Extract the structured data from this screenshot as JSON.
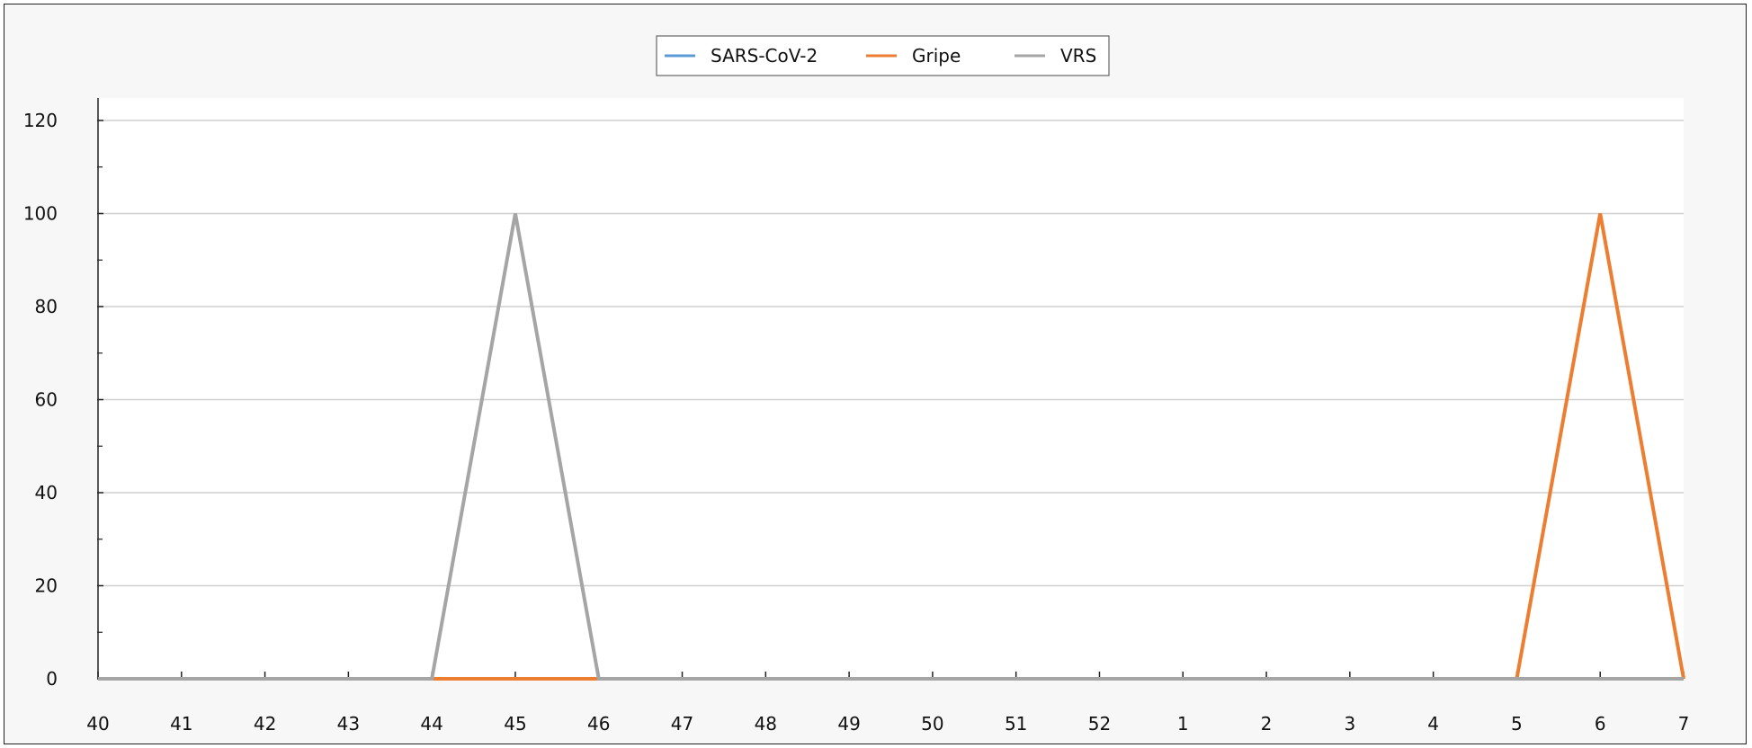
{
  "chart_data": {
    "type": "line",
    "title": "",
    "xlabel": "",
    "ylabel": "",
    "categories": [
      "40",
      "41",
      "42",
      "43",
      "44",
      "45",
      "46",
      "47",
      "48",
      "49",
      "50",
      "51",
      "52",
      "1",
      "2",
      "3",
      "4",
      "5",
      "6",
      "7"
    ],
    "ylim": [
      0,
      120
    ],
    "yticks": [
      "0",
      "20",
      "40",
      "60",
      "80",
      "100",
      "120"
    ],
    "grid": "horizontal",
    "legend_position": "top-center",
    "series": [
      {
        "name": "SARS-CoV-2",
        "color": "#5b9bd5",
        "values": [
          0,
          0,
          0,
          0,
          0,
          0,
          0,
          0,
          0,
          0,
          0,
          0,
          0,
          0,
          0,
          0,
          0,
          0,
          0,
          0
        ]
      },
      {
        "name": "Gripe",
        "color": "#ed7d31",
        "values": [
          0,
          0,
          0,
          0,
          0,
          0,
          0,
          0,
          0,
          0,
          0,
          0,
          0,
          0,
          0,
          0,
          0,
          0,
          100,
          0
        ]
      },
      {
        "name": "VRS",
        "color": "#a5a5a5",
        "values": [
          0,
          0,
          0,
          0,
          0,
          100,
          0,
          0,
          0,
          0,
          0,
          0,
          0,
          0,
          0,
          0,
          0,
          0,
          0,
          0
        ]
      }
    ]
  }
}
